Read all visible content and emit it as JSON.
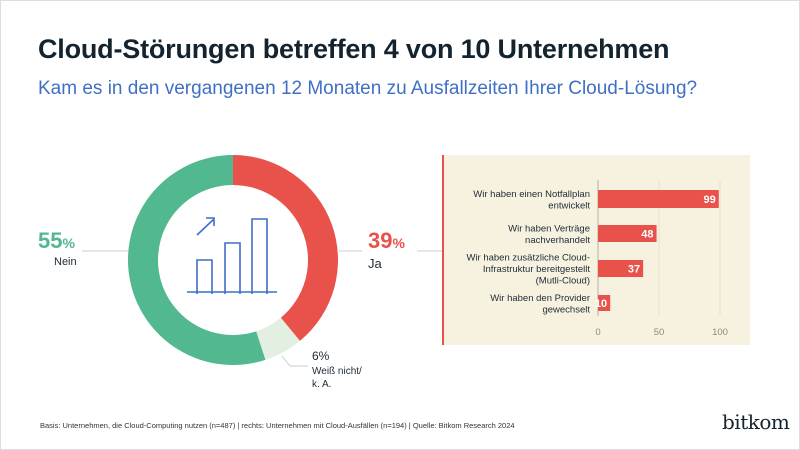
{
  "title": "Cloud-Störungen betreffen 4 von 10 Unternehmen",
  "subtitle": "Kam es in den vergangenen 12 Monaten zu Ausfallzeiten Ihrer Cloud-Lösung?",
  "colors": {
    "ja": "#e8524a",
    "nein": "#52b88f",
    "weiss_nicht": "#e3efe0",
    "icon": "#3f6fc6",
    "panel_bg": "#f7f2e0"
  },
  "center_icon": "bar-chart-growth-icon",
  "chart_data": [
    {
      "type": "pie",
      "variant": "donut",
      "slices": [
        {
          "label": "Ja",
          "value": 39,
          "value_label": "39",
          "unit": "%"
        },
        {
          "label": "Weiß nicht/ k. A.",
          "value": 6,
          "value_label": "6%"
        },
        {
          "label": "Nein",
          "value": 55,
          "value_label": "55",
          "unit": "%"
        }
      ]
    },
    {
      "type": "bar",
      "orientation": "horizontal",
      "categories": [
        "Wir haben einen Notfallplan entwickelt",
        "Wir haben Verträge nachverhandelt",
        "Wir haben zusätzliche Cloud-Infrastruktur bereitgestellt (Mutli-Cloud)",
        "Wir haben den Provider gewechselt"
      ],
      "values": [
        99,
        48,
        37,
        10
      ],
      "xlim": [
        0,
        100
      ],
      "xticks": [
        "0",
        "50",
        "100"
      ],
      "grid": true
    }
  ],
  "footnote": "Basis: Unternehmen, die Cloud-Computing nutzen (n=487) | rechts: Unternehmen mit Cloud-Ausfällen (n=194) | Quelle: Bitkom Research 2024",
  "logo": "bitkom"
}
